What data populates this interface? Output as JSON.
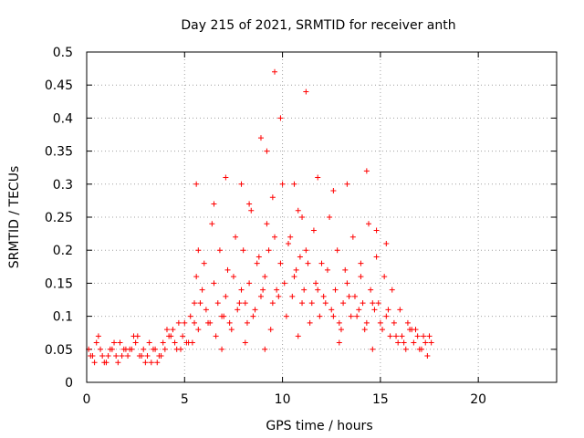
{
  "chart_data": {
    "type": "scatter",
    "title": "Day 215 of 2021, SRMTID for receiver anth",
    "xlabel": "GPS time / hours",
    "ylabel": "SRMTID / TECUs",
    "xlim": [
      0,
      24
    ],
    "ylim": [
      0,
      0.5
    ],
    "x_ticks": [
      0,
      5,
      10,
      15,
      20
    ],
    "x_tick_labels": [
      "0",
      "5",
      "10",
      "15",
      "20"
    ],
    "y_ticks": [
      0,
      0.05,
      0.1,
      0.15,
      0.2,
      0.25,
      0.3,
      0.35,
      0.4,
      0.45,
      0.5
    ],
    "y_tick_labels": [
      "0",
      "0.05",
      "0.1",
      "0.15",
      "0.2",
      "0.25",
      "0.3",
      "0.35",
      "0.4",
      "0.45",
      "0.5"
    ],
    "grid": true,
    "marker": "+",
    "color": "#ff0000",
    "series": [
      {
        "name": "SRMTID",
        "x": [
          0.1,
          0.3,
          0.5,
          0.7,
          0.9,
          1.1,
          1.3,
          1.5,
          1.7,
          1.9,
          2.1,
          2.3,
          2.5,
          2.7,
          2.9,
          3.1,
          3.3,
          3.5,
          3.7,
          3.9,
          4.1,
          4.3,
          4.5,
          4.7,
          4.9,
          5.1,
          5.3,
          5.5,
          5.6,
          5.7,
          5.9,
          6.1,
          6.3,
          6.5,
          6.7,
          6.9,
          7.1,
          7.3,
          7.5,
          7.7,
          7.9,
          8.1,
          8.3,
          8.5,
          8.7,
          8.9,
          9.1,
          9.3,
          9.5,
          9.6,
          9.7,
          9.9,
          10.1,
          10.3,
          10.5,
          10.7,
          10.9,
          11.0,
          11.1,
          11.3,
          11.5,
          11.7,
          11.9,
          12.1,
          12.3,
          12.5,
          12.7,
          12.9,
          13.1,
          13.3,
          13.5,
          13.7,
          13.9,
          14.0,
          14.1,
          14.3,
          14.5,
          14.7,
          14.9,
          15.1,
          15.3,
          15.5,
          15.7,
          15.9,
          16.1,
          16.3,
          16.5,
          16.7,
          16.9,
          17.1,
          17.3,
          17.5,
          0.2,
          0.6,
          1.0,
          1.4,
          1.8,
          2.2,
          2.6,
          3.0,
          3.4,
          3.8,
          4.2,
          4.6,
          5.0,
          5.4,
          5.8,
          6.2,
          6.6,
          7.0,
          7.4,
          7.8,
          8.2,
          8.6,
          9.0,
          9.4,
          9.8,
          10.2,
          10.6,
          11.0,
          11.4,
          11.8,
          12.2,
          12.6,
          13.0,
          13.4,
          13.8,
          14.2,
          14.6,
          15.0,
          15.4,
          15.8,
          16.2,
          16.6,
          17.0,
          17.4,
          0.4,
          0.8,
          1.2,
          1.6,
          2.0,
          2.4,
          2.8,
          3.2,
          3.6,
          4.0,
          4.4,
          4.8,
          5.2,
          5.7,
          6.0,
          6.4,
          6.8,
          7.2,
          7.6,
          8.0,
          8.4,
          8.8,
          9.2,
          9.5,
          10.0,
          10.4,
          10.8,
          11.2,
          11.6,
          12.0,
          12.4,
          12.8,
          13.2,
          13.6,
          14.0,
          14.4,
          14.8,
          15.2,
          15.6,
          16.0,
          16.4,
          16.8,
          17.2,
          17.6,
          5.6,
          6.5,
          7.1,
          7.9,
          8.3,
          8.9,
          9.2,
          9.6,
          9.9,
          10.6,
          11.2,
          11.8,
          12.6,
          13.3,
          14.3,
          14.8,
          15.3,
          5.5,
          6.9,
          8.1,
          9.1,
          10.8,
          12.9,
          14.6
        ],
        "y": [
          0.05,
          0.04,
          0.06,
          0.05,
          0.03,
          0.04,
          0.05,
          0.04,
          0.06,
          0.05,
          0.04,
          0.05,
          0.06,
          0.04,
          0.05,
          0.04,
          0.03,
          0.05,
          0.04,
          0.06,
          0.08,
          0.07,
          0.06,
          0.09,
          0.07,
          0.06,
          0.1,
          0.12,
          0.16,
          0.08,
          0.14,
          0.11,
          0.09,
          0.15,
          0.12,
          0.1,
          0.13,
          0.09,
          0.16,
          0.11,
          0.14,
          0.12,
          0.15,
          0.1,
          0.18,
          0.13,
          0.16,
          0.2,
          0.12,
          0.22,
          0.14,
          0.18,
          0.15,
          0.21,
          0.13,
          0.17,
          0.19,
          0.25,
          0.14,
          0.18,
          0.12,
          0.15,
          0.1,
          0.13,
          0.17,
          0.11,
          0.14,
          0.09,
          0.12,
          0.15,
          0.1,
          0.13,
          0.11,
          0.16,
          0.12,
          0.09,
          0.14,
          0.11,
          0.12,
          0.08,
          0.1,
          0.07,
          0.09,
          0.06,
          0.07,
          0.05,
          0.08,
          0.06,
          0.07,
          0.05,
          0.06,
          0.07,
          0.04,
          0.07,
          0.03,
          0.06,
          0.04,
          0.05,
          0.07,
          0.03,
          0.05,
          0.04,
          0.07,
          0.05,
          0.09,
          0.06,
          0.12,
          0.09,
          0.07,
          0.1,
          0.08,
          0.12,
          0.09,
          0.11,
          0.14,
          0.08,
          0.13,
          0.1,
          0.16,
          0.12,
          0.09,
          0.14,
          0.12,
          0.1,
          0.08,
          0.13,
          0.1,
          0.08,
          0.12,
          0.09,
          0.11,
          0.07,
          0.06,
          0.08,
          0.05,
          0.04,
          0.03,
          0.04,
          0.05,
          0.03,
          0.05,
          0.07,
          0.04,
          0.06,
          0.03,
          0.05,
          0.08,
          0.05,
          0.06,
          0.2,
          0.18,
          0.24,
          0.2,
          0.17,
          0.22,
          0.2,
          0.26,
          0.19,
          0.24,
          0.28,
          0.3,
          0.22,
          0.26,
          0.2,
          0.23,
          0.18,
          0.25,
          0.2,
          0.17,
          0.22,
          0.18,
          0.24,
          0.19,
          0.16,
          0.14,
          0.11,
          0.09,
          0.08,
          0.07,
          0.06,
          0.3,
          0.27,
          0.31,
          0.3,
          0.27,
          0.37,
          0.35,
          0.47,
          0.4,
          0.3,
          0.44,
          0.31,
          0.29,
          0.3,
          0.32,
          0.23,
          0.21,
          0.09,
          0.05,
          0.06,
          0.05,
          0.07,
          0.06,
          0.05
        ]
      }
    ]
  }
}
